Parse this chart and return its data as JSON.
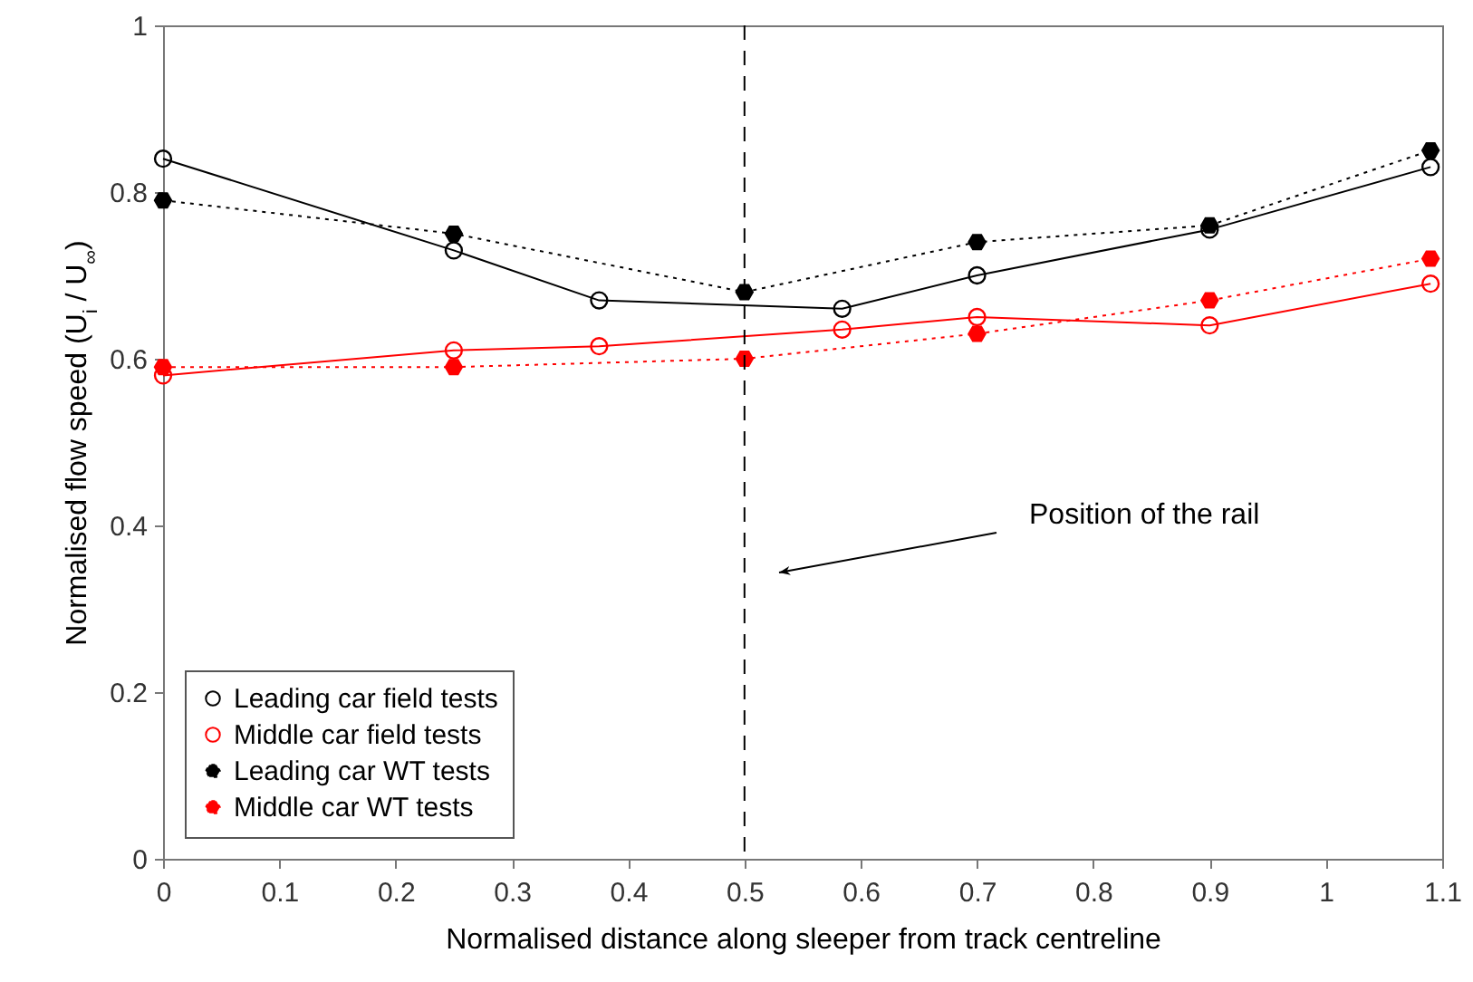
{
  "chart_data": {
    "type": "line",
    "xlabel": "Normalised distance along sleeper from track centreline",
    "ylabel": "Normalised flow speed (U$_{i}$ / U$_{∞}$)",
    "xlim": [
      0,
      1.1
    ],
    "xticks": [
      0,
      0.1,
      0.2,
      0.3,
      0.4,
      0.5,
      0.6,
      0.7,
      0.8,
      0.9,
      1,
      1.1
    ],
    "ylim": [
      0,
      1
    ],
    "yticks": [
      0,
      0.2,
      0.4,
      0.6,
      0.8,
      1
    ],
    "grid": false,
    "legend": "bottom left",
    "ref_lines": [
      {
        "axis": "x",
        "value": 0.5,
        "color": "#000000",
        "line_style": "dashed"
      }
    ],
    "annotations": [
      "Position of the rail"
    ],
    "series": [
      {
        "name": "Leading car field tests",
        "color": "#000000",
        "marker": "circle",
        "line_style": "solid",
        "x": [
          0,
          0.25,
          0.375,
          0.584,
          0.7,
          0.9,
          1.09
        ],
        "values": [
          0.84,
          0.73,
          0.67,
          0.66,
          0.7,
          0.755,
          0.83
        ]
      },
      {
        "name": "Middle car field tests",
        "color": "#ff0000",
        "marker": "circle",
        "line_style": "solid",
        "x": [
          0,
          0.25,
          0.375,
          0.584,
          0.7,
          0.9,
          1.09
        ],
        "values": [
          0.58,
          0.61,
          0.615,
          0.635,
          0.65,
          0.64,
          0.69
        ]
      },
      {
        "name": "Leading car WT tests",
        "color": "#000000",
        "marker": "star",
        "line_style": "dotted",
        "x": [
          0,
          0.25,
          0.5,
          0.7,
          0.9,
          1.09
        ],
        "values": [
          0.79,
          0.75,
          0.68,
          0.74,
          0.76,
          0.85
        ]
      },
      {
        "name": "Middle car WT tests",
        "color": "#ff0000",
        "marker": "star",
        "line_style": "dotted",
        "x": [
          0,
          0.25,
          0.5,
          0.7,
          0.9,
          1.09
        ],
        "values": [
          0.59,
          0.59,
          0.6,
          0.63,
          0.67,
          0.72
        ]
      }
    ]
  }
}
